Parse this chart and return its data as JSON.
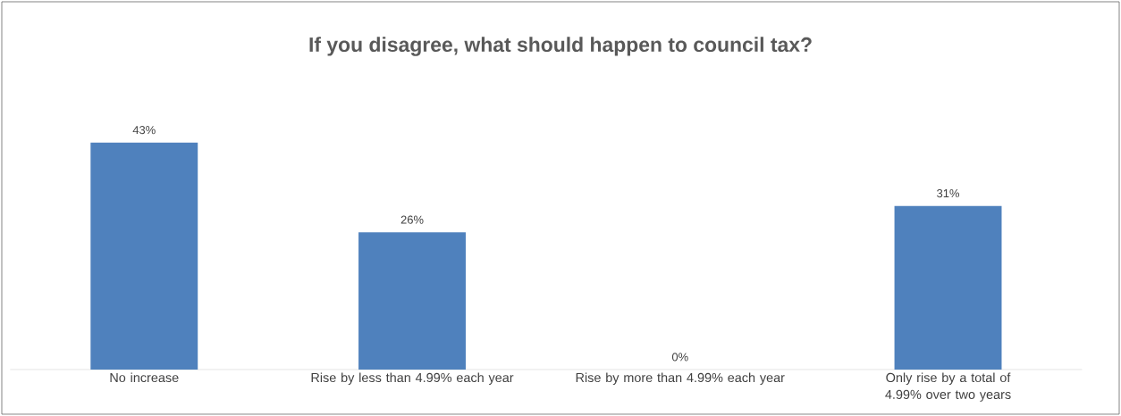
{
  "chart_data": {
    "type": "bar",
    "title": "If you disagree, what should happen to council tax?",
    "categories": [
      "No increase",
      "Rise by less than 4.99% each year",
      "Rise by more than 4.99% each year",
      "Only rise by a total of 4.99% over two years"
    ],
    "values": [
      43,
      26,
      0,
      31
    ],
    "value_labels": [
      "43%",
      "26%",
      "0%",
      "31%"
    ],
    "color": "#4f81bd"
  }
}
